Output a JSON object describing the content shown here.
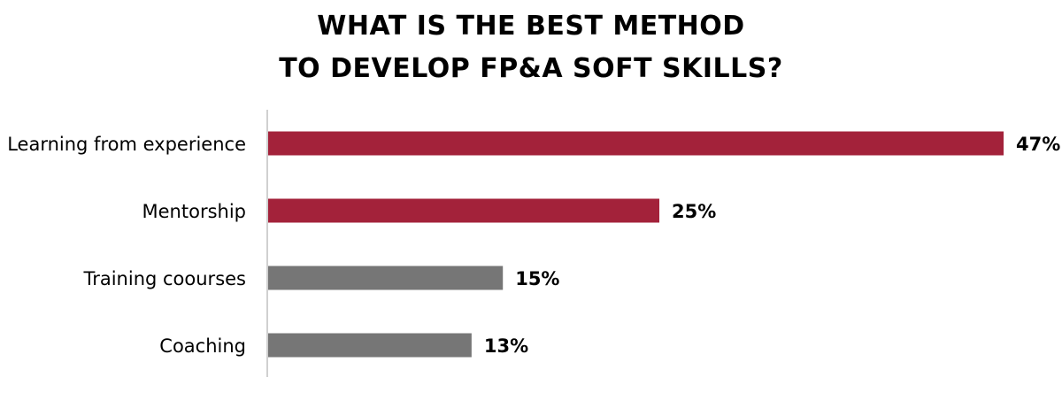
{
  "chart_data": {
    "type": "bar",
    "orientation": "horizontal",
    "title_lines": [
      "WHAT IS THE BEST METHOD",
      "TO DEVELOP FP&A SOFT SKILLS?"
    ],
    "categories": [
      "Learning from experience",
      "Mentorship",
      "Training coourses",
      "Coaching"
    ],
    "values": [
      47,
      25,
      15,
      13
    ],
    "value_labels": [
      "47%",
      "25%",
      "15%",
      "13%"
    ],
    "bar_colors": [
      "#a3223a",
      "#a3223a",
      "#767676",
      "#767676"
    ],
    "axis_color": "#d0d0d0",
    "grid": false,
    "legend": "none"
  }
}
